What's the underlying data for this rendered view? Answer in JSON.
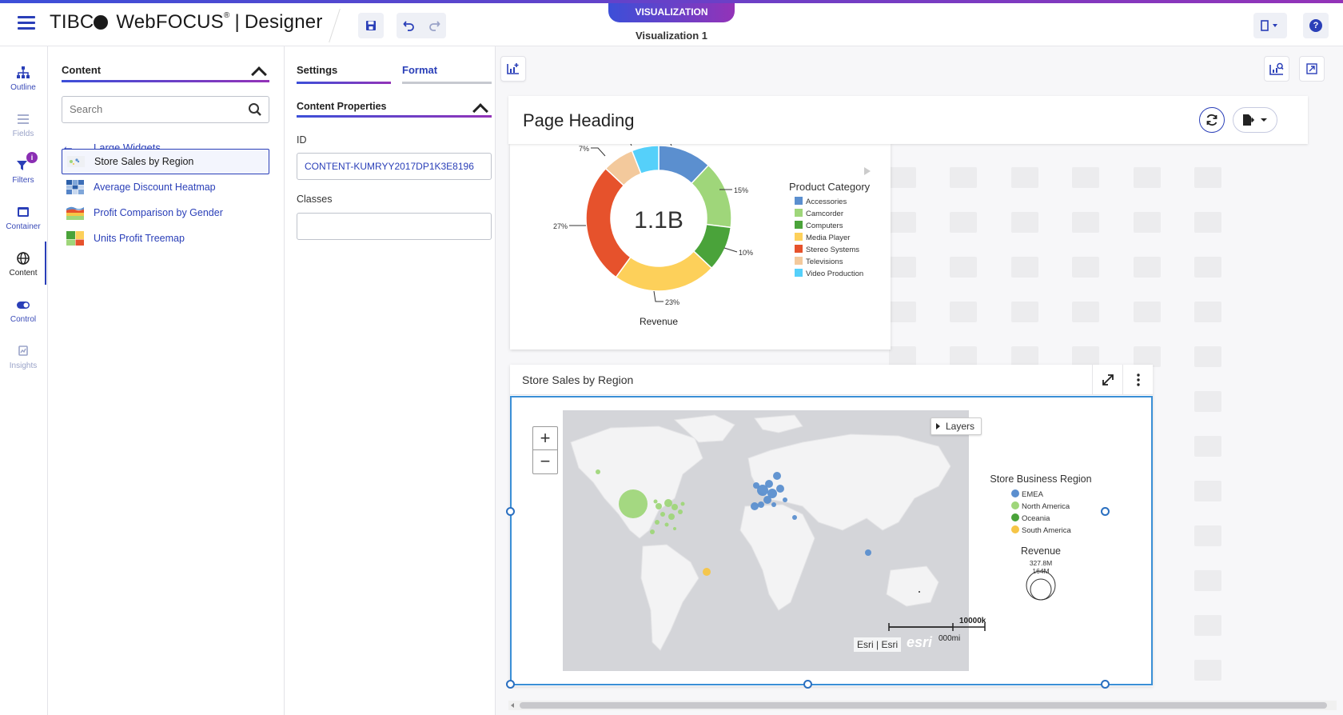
{
  "app": {
    "brand_company": "TIBC",
    "brand_product": "WebFOCUS",
    "brand_suffix": "Designer",
    "mode_tab": "VISUALIZATION",
    "viz_name": "Visualization 1"
  },
  "toolbar": {
    "save_icon": "save-icon",
    "undo_icon": "undo-icon",
    "redo_icon": "redo-icon",
    "layout_icon": "layout-icon",
    "help_label": "?"
  },
  "leftnav": {
    "items": [
      {
        "label": "Outline",
        "icon": "outline-icon"
      },
      {
        "label": "Fields",
        "icon": "fields-icon"
      },
      {
        "label": "Filters",
        "icon": "filter-icon",
        "badge": "i"
      },
      {
        "label": "Container",
        "icon": "container-icon"
      },
      {
        "label": "Content",
        "icon": "globe-icon"
      },
      {
        "label": "Control",
        "icon": "toggle-icon"
      },
      {
        "label": "Insights",
        "icon": "insights-icon"
      }
    ]
  },
  "content_panel": {
    "title": "Content",
    "search_placeholder": "Search",
    "back_label": "Large Widgets",
    "widgets": [
      {
        "label": "Store Sales by Region",
        "selected": true
      },
      {
        "label": "Average Discount Heatmap",
        "selected": false
      },
      {
        "label": "Profit Comparison by Gender",
        "selected": false
      },
      {
        "label": "Units Profit Treemap",
        "selected": false
      }
    ]
  },
  "props_panel": {
    "tab_settings": "Settings",
    "tab_format": "Format",
    "section_title": "Content Properties",
    "id_label": "ID",
    "id_value": "CONTENT-KUMRYY2017DP1K3E8196",
    "classes_label": "Classes",
    "classes_value": ""
  },
  "canvas": {
    "page_heading": "Page Heading",
    "donut": {
      "center_label": "1.1B",
      "measure_label": "Revenue",
      "legend_title": "Product Category",
      "slice_labels": [
        "15%",
        "10%",
        "23%",
        "27%",
        "7%"
      ]
    },
    "map_widget": {
      "title": "Store Sales by Region",
      "layers_label": "Layers",
      "zoom_in": "+",
      "zoom_out": "−",
      "legend_title": "Store Business Region",
      "legend_items": [
        {
          "label": "EMEA",
          "color": "#5b8fcf"
        },
        {
          "label": "North America",
          "color": "#9fd67a"
        },
        {
          "label": "Oceania",
          "color": "#4aa33a"
        },
        {
          "label": "South America",
          "color": "#f6c546"
        }
      ],
      "size_legend_title": "Revenue",
      "size_legend_max": "327.8M",
      "size_legend_mid": "164M",
      "scale_km": "10000k",
      "scale_mi": "000mi",
      "attribution": "Esri | Esri",
      "esri_logo": "esri"
    }
  },
  "chart_data": {
    "type": "pie",
    "donut": true,
    "center_total": "1.1B",
    "measure": "Revenue",
    "legend_title": "Product Category",
    "legend_position": "right",
    "categories": [
      "Accessories",
      "Camcorder",
      "Computers",
      "Media Player",
      "Stereo Systems",
      "Televisions",
      "Video Production"
    ],
    "values": [
      12,
      15,
      10,
      23,
      27,
      7,
      6
    ],
    "colors": [
      "#5b8fcf",
      "#9fd67a",
      "#4aa33a",
      "#fdd05a",
      "#e6522c",
      "#f3c99c",
      "#55d0fa"
    ]
  }
}
